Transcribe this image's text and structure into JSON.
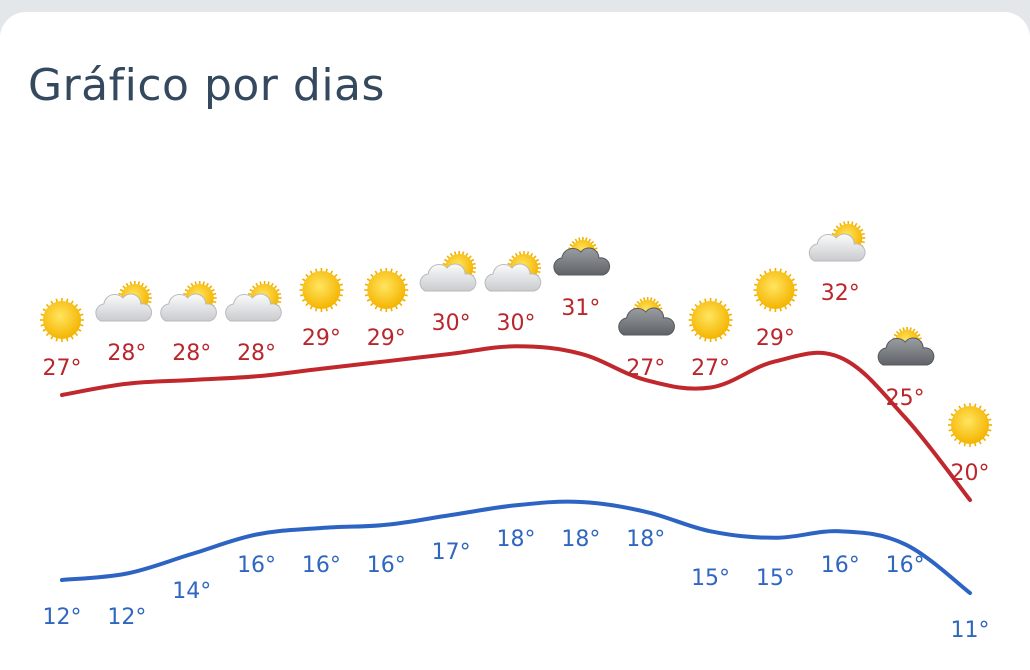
{
  "title": "Gráfico por dias",
  "chart_data": {
    "type": "line",
    "title": "Gráfico por dias",
    "x": [
      1,
      2,
      3,
      4,
      5,
      6,
      7,
      8,
      9,
      10,
      11,
      12,
      13,
      14,
      15
    ],
    "series": [
      {
        "key": "max",
        "values": [
          27,
          28,
          28,
          28,
          29,
          29,
          30,
          30,
          31,
          27,
          27,
          29,
          32,
          25,
          20
        ],
        "labels": [
          "27°",
          "28°",
          "28°",
          "28°",
          "29°",
          "29°",
          "30°",
          "30°",
          "31°",
          "27°",
          "27°",
          "29°",
          "32°",
          "25°",
          "20°"
        ],
        "color": "#c0282d"
      },
      {
        "key": "min",
        "values": [
          12,
          12,
          14,
          16,
          16,
          16,
          17,
          18,
          18,
          18,
          15,
          15,
          16,
          16,
          11
        ],
        "labels": [
          "12°",
          "12°",
          "14°",
          "16°",
          "16°",
          "16°",
          "17°",
          "18°",
          "18°",
          "18°",
          "15°",
          "15°",
          "16°",
          "16°",
          "11°"
        ],
        "color": "#2d64c4"
      }
    ],
    "icons": [
      "sun-icon",
      "partly-cloudy-icon",
      "partly-cloudy-icon",
      "partly-cloudy-icon",
      "sun-icon",
      "sun-icon",
      "partly-cloudy-icon",
      "partly-cloudy-icon",
      "dark-cloudy-icon",
      "dark-cloudy-icon",
      "sun-icon",
      "sun-icon",
      "partly-cloudy-icon",
      "dark-cloudy-icon",
      "sun-icon"
    ],
    "grid": false,
    "legend": "none"
  }
}
